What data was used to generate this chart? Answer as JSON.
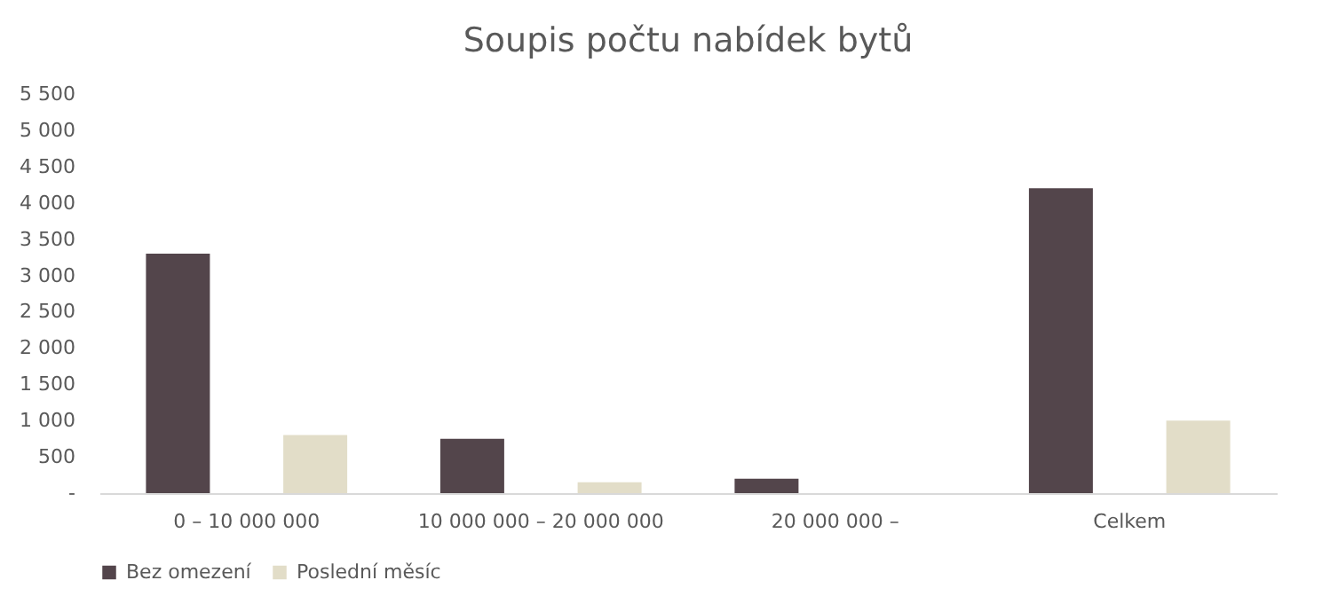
{
  "chart_data": {
    "type": "bar",
    "title": "Soupis počtu nabídek bytů",
    "categories": [
      "0 – 10 000 000",
      "10 000 000 – 20 000 000",
      "20 000 000 –",
      "Celkem"
    ],
    "series": [
      {
        "name": "Bez omezení",
        "color": "#53454b",
        "values": [
          3300,
          750,
          200,
          4200
        ]
      },
      {
        "name": "Poslední měsíc",
        "color": "#e2ddc8",
        "values": [
          800,
          150,
          null,
          1000
        ]
      }
    ],
    "ylim": [
      0,
      5500
    ],
    "yticks": [
      {
        "value": 0,
        "label": "-"
      },
      500,
      {
        "value": 1000,
        "label": "1 000"
      },
      {
        "value": 1500,
        "label": "1 500"
      },
      {
        "value": 2000,
        "label": "2 000"
      },
      {
        "value": 2500,
        "label": "2 500"
      },
      {
        "value": 3000,
        "label": "3 000"
      },
      {
        "value": 3500,
        "label": "3 500"
      },
      {
        "value": 4000,
        "label": "4 000"
      },
      {
        "value": 4500,
        "label": "4 500"
      },
      {
        "value": 5000,
        "label": "5 000"
      },
      {
        "value": 5500,
        "label": "5 500"
      }
    ],
    "grid": false,
    "legend": "bottom"
  }
}
